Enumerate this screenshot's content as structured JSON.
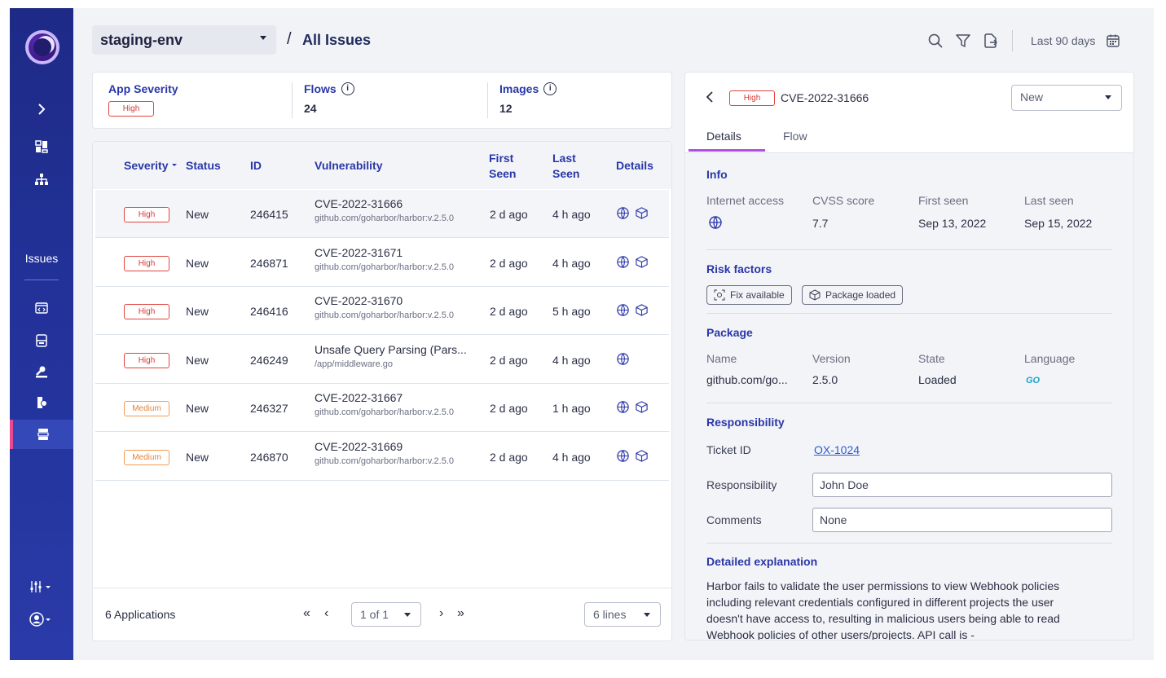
{
  "sidebar": {
    "section_label": "Issues",
    "expand_icon": "chevron-right-icon",
    "icons": [
      "dashboard-icon",
      "sitemap-icon",
      "code-icon",
      "server-icon",
      "wrench-icon",
      "policy-icon",
      "issues-list-icon"
    ],
    "bottom_icons": [
      "filter-sliders-icon",
      "user-circle-icon"
    ],
    "accent": "#e8488f"
  },
  "header": {
    "environment": "staging-env",
    "separator": "/",
    "title": "All Issues",
    "date_range": "Last 90 days"
  },
  "summary": {
    "app_severity_label": "App Severity",
    "app_severity_value": "High",
    "flows_label": "Flows",
    "flows_value": "24",
    "images_label": "Images",
    "images_value": "12"
  },
  "table": {
    "headers": {
      "severity": "Severity",
      "status": "Status",
      "id": "ID",
      "vulnerability": "Vulnerability",
      "first_seen_1": "First",
      "first_seen_2": "Seen",
      "last_seen_1": "Last",
      "last_seen_2": "Seen",
      "details": "Details"
    },
    "rows": [
      {
        "severity": "High",
        "status": "New",
        "id": "246415",
        "vuln": "CVE-2022-31666",
        "source": "github.com/goharbor/harbor:v.2.5.0",
        "first_seen": "2 d ago",
        "last_seen": "4 h ago"
      },
      {
        "severity": "High",
        "status": "New",
        "id": "246871",
        "vuln": "CVE-2022-31671",
        "source": "github.com/goharbor/harbor:v.2.5.0",
        "first_seen": "2 d ago",
        "last_seen": "4 h ago"
      },
      {
        "severity": "High",
        "status": "New",
        "id": "246416",
        "vuln": "CVE-2022-31670",
        "source": "github.com/goharbor/harbor:v.2.5.0",
        "first_seen": "2 d ago",
        "last_seen": "5 h ago"
      },
      {
        "severity": "High",
        "status": "New",
        "id": "246249",
        "vuln": "Unsafe Query Parsing (Pars...",
        "source": "/app/middleware.go",
        "first_seen": "2 d ago",
        "last_seen": "4 h ago"
      },
      {
        "severity": "Medium",
        "status": "New",
        "id": "246327",
        "vuln": "CVE-2022-31667",
        "source": "github.com/goharbor/harbor:v.2.5.0",
        "first_seen": "2 d ago",
        "last_seen": "1 h ago"
      },
      {
        "severity": "Medium",
        "status": "New",
        "id": "246870",
        "vuln": "CVE-2022-31669",
        "source": "github.com/goharbor/harbor:v.2.5.0",
        "first_seen": "2 d ago",
        "last_seen": "4 h ago"
      }
    ],
    "footer": {
      "count": "6 Applications",
      "page": "1 of 1",
      "lines": "6 lines"
    }
  },
  "detail": {
    "severity": "High",
    "cve": "CVE-2022-31666",
    "status": "New",
    "tabs": [
      "Details",
      "Flow"
    ],
    "info": {
      "title": "Info",
      "internet_access_label": "Internet access",
      "cvss_label": "CVSS score",
      "cvss_value": "7.7",
      "first_seen_label": "First seen",
      "first_seen_value": "Sep 13, 2022",
      "last_seen_label": "Last seen",
      "last_seen_value": "Sep 15, 2022"
    },
    "risk": {
      "title": "Risk factors",
      "chips": [
        "Fix available",
        "Package loaded"
      ]
    },
    "package": {
      "title": "Package",
      "name_label": "Name",
      "name_value": "github.com/go...",
      "version_label": "Version",
      "version_value": "2.5.0",
      "state_label": "State",
      "state_value": "Loaded",
      "language_label": "Language",
      "language_value": "GO"
    },
    "responsibility": {
      "title": "Responsibility",
      "ticket_label": "Ticket ID",
      "ticket_value": "OX-1024",
      "resp_label": "Responsibility",
      "resp_value": "John Doe",
      "comments_label": "Comments",
      "comments_value": "None"
    },
    "explanation": {
      "title": "Detailed explanation",
      "text": "Harbor fails to validate the user permissions to view Webhook policies including relevant credentials configured in different projects the user doesn't have access to, resulting in malicious users being able to read Webhook policies of other users/projects. API call is -"
    }
  },
  "colors": {
    "sidebar_bg": "#223299",
    "accent_blue": "#2a37a8",
    "high": "#e0453e",
    "medium": "#f39a52",
    "tab_active": "#b44be0"
  }
}
